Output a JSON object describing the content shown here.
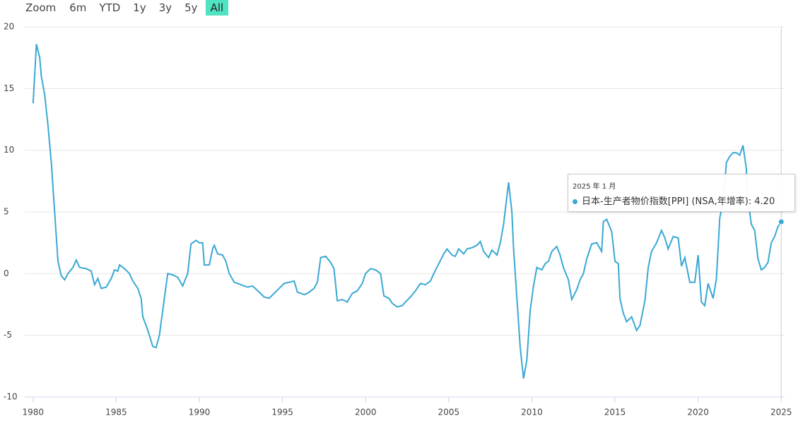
{
  "range_selector": {
    "label": "Zoom",
    "buttons": [
      "6m",
      "YTD",
      "1y",
      "3y",
      "5y",
      "All"
    ],
    "selected": 5
  },
  "chart_data": {
    "type": "line",
    "xlim": [
      1979.5,
      2025.2
    ],
    "xticks": [
      1980,
      1985,
      1990,
      1995,
      2000,
      2005,
      2010,
      2015,
      2020,
      2025
    ],
    "ylim": [
      -10,
      20
    ],
    "yticks": [
      -10,
      -5,
      0,
      5,
      10,
      15,
      20
    ],
    "grid": true,
    "x": [
      1980.0,
      1980.2,
      1980.4,
      1980.5,
      1980.7,
      1980.9,
      1981.1,
      1981.3,
      1981.5,
      1981.7,
      1981.9,
      1982.1,
      1982.4,
      1982.6,
      1982.8,
      1983.2,
      1983.5,
      1983.7,
      1983.9,
      1984.1,
      1984.4,
      1984.7,
      1984.9,
      1985.1,
      1985.2,
      1985.5,
      1985.8,
      1986.0,
      1986.3,
      1986.5,
      1986.6,
      1986.8,
      1987.0,
      1987.2,
      1987.4,
      1987.6,
      1987.8,
      1988.0,
      1988.1,
      1988.4,
      1988.7,
      1989.0,
      1989.3,
      1989.5,
      1989.8,
      1990.0,
      1990.2,
      1990.3,
      1990.6,
      1990.8,
      1990.9,
      1991.1,
      1991.4,
      1991.6,
      1991.8,
      1992.1,
      1992.5,
      1992.9,
      1993.2,
      1993.6,
      1993.9,
      1994.2,
      1994.5,
      1994.8,
      1995.1,
      1995.4,
      1995.7,
      1995.9,
      1996.3,
      1996.5,
      1996.9,
      1997.1,
      1997.3,
      1997.6,
      1997.9,
      1998.1,
      1998.3,
      1998.6,
      1998.9,
      1999.2,
      1999.5,
      1999.8,
      2000.0,
      2000.3,
      2000.6,
      2000.9,
      2001.1,
      2001.4,
      2001.6,
      2001.9,
      2002.2,
      2002.4,
      2002.7,
      2003.0,
      2003.3,
      2003.6,
      2003.9,
      2004.1,
      2004.4,
      2004.7,
      2004.9,
      2005.2,
      2005.4,
      2005.6,
      2005.9,
      2006.1,
      2006.4,
      2006.7,
      2006.9,
      2007.1,
      2007.4,
      2007.6,
      2007.9,
      2008.1,
      2008.3,
      2008.6,
      2008.8,
      2008.9,
      2009.1,
      2009.3,
      2009.5,
      2009.7,
      2009.9,
      2010.1,
      2010.3,
      2010.6,
      2010.8,
      2011.0,
      2011.2,
      2011.5,
      2011.7,
      2011.9,
      2012.2,
      2012.4,
      2012.7,
      2012.9,
      2013.1,
      2013.3,
      2013.6,
      2013.9,
      2014.2,
      2014.3,
      2014.5,
      2014.8,
      2015.0,
      2015.2,
      2015.3,
      2015.5,
      2015.7,
      2016.0,
      2016.3,
      2016.5,
      2016.8,
      2017.0,
      2017.2,
      2017.5,
      2017.8,
      2018.0,
      2018.2,
      2018.5,
      2018.8,
      2019.0,
      2019.2,
      2019.5,
      2019.8,
      2020.0,
      2020.2,
      2020.4,
      2020.6,
      2020.9,
      2021.1,
      2021.3,
      2021.5,
      2021.7,
      2021.9,
      2022.1,
      2022.3,
      2022.5,
      2022.7,
      2022.9,
      2023.0,
      2023.2,
      2023.4,
      2023.6,
      2023.8,
      2024.0,
      2024.2,
      2024.4,
      2024.6,
      2024.8,
      2025.0
    ],
    "series": [
      {
        "name": "日本-生产者物价指数[PPI] (NSA,年增率)",
        "color": "#3aa8d4",
        "values": [
          13.8,
          18.6,
          17.5,
          16,
          14.5,
          12,
          9,
          5,
          1.0,
          -0.2,
          -0.5,
          0,
          0.5,
          1.1,
          0.5,
          0.4,
          0.2,
          -0.9,
          -0.4,
          -1.2,
          -1.1,
          -0.4,
          0.3,
          0.2,
          0.7,
          0.4,
          0.0,
          -0.6,
          -1.2,
          -2.0,
          -3.5,
          -4.2,
          -5.0,
          -5.9,
          -6.0,
          -5.0,
          -3.0,
          -1.0,
          0.0,
          -0.1,
          -0.3,
          -1.0,
          0.0,
          2.4,
          2.7,
          2.5,
          2.5,
          0.7,
          0.7,
          2.0,
          2.3,
          1.6,
          1.5,
          1.0,
          0.0,
          -0.7,
          -0.9,
          -1.1,
          -1.0,
          -1.5,
          -1.9,
          -2.0,
          -1.6,
          -1.2,
          -0.8,
          -0.7,
          -0.6,
          -1.5,
          -1.7,
          -1.6,
          -1.2,
          -0.7,
          1.3,
          1.4,
          0.9,
          0.4,
          -2.2,
          -2.1,
          -2.3,
          -1.6,
          -1.4,
          -0.8,
          0.0,
          0.4,
          0.3,
          0.0,
          -1.8,
          -2.0,
          -2.4,
          -2.7,
          -2.6,
          -2.3,
          -1.9,
          -1.4,
          -0.8,
          -0.9,
          -0.6,
          0.0,
          0.8,
          1.6,
          2.0,
          1.5,
          1.4,
          2.0,
          1.6,
          2.0,
          2.1,
          2.3,
          2.6,
          1.8,
          1.3,
          1.9,
          1.5,
          2.5,
          4.0,
          7.4,
          5.0,
          2.0,
          -2.0,
          -6.0,
          -8.5,
          -7.0,
          -3.0,
          -1.0,
          0.5,
          0.3,
          0.8,
          1.0,
          1.8,
          2.2,
          1.5,
          0.5,
          -0.5,
          -2.1,
          -1.3,
          -0.5,
          0.0,
          1.2,
          2.4,
          2.5,
          1.8,
          4.2,
          4.4,
          3.4,
          1.0,
          0.8,
          -2.0,
          -3.2,
          -3.9,
          -3.5,
          -4.6,
          -4.2,
          -2.2,
          0.5,
          1.8,
          2.5,
          3.5,
          2.9,
          2.0,
          3.0,
          2.9,
          0.6,
          1.3,
          -0.7,
          -0.7,
          1.5,
          -2.3,
          -2.6,
          -0.8,
          -2.0,
          -0.4,
          4.5,
          5.8,
          9.0,
          9.5,
          9.8,
          9.8,
          9.6,
          10.4,
          8.5,
          6.0,
          4.0,
          3.5,
          1.2,
          0.3,
          0.5,
          0.9,
          2.5,
          3.0,
          3.8,
          4.2
        ]
      }
    ],
    "tooltip": {
      "title": "2025 年 1 月",
      "value_label": "4.20"
    }
  }
}
